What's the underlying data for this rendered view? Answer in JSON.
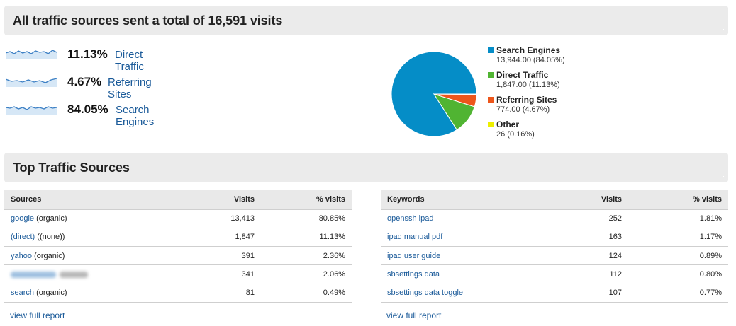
{
  "header_visits": {
    "title": "All traffic sources sent a total of 16,591 visits"
  },
  "summary": [
    {
      "percent": "11.13%",
      "label": "Direct Traffic"
    },
    {
      "percent": "4.67%",
      "label": "Referring Sites"
    },
    {
      "percent": "84.05%",
      "label": "Search Engines"
    }
  ],
  "pie": {
    "slices": [
      {
        "name": "Search Engines",
        "value": "13,944.00 (84.05%)",
        "fraction": 0.8405,
        "color": "#058dc7"
      },
      {
        "name": "Direct Traffic",
        "value": "1,847.00 (11.13%)",
        "fraction": 0.1113,
        "color": "#50b432"
      },
      {
        "name": "Referring Sites",
        "value": "774.00 (4.67%)",
        "fraction": 0.0467,
        "color": "#ed561b"
      },
      {
        "name": "Other",
        "value": "26 (0.16%)",
        "fraction": 0.0016,
        "color": "#edef00"
      }
    ]
  },
  "header_top": {
    "title": "Top Traffic Sources"
  },
  "sources_table": {
    "columns": [
      "Sources",
      "Visits",
      "% visits"
    ],
    "rows": [
      {
        "link": "google",
        "suffix": " (organic)",
        "visits": "13,413",
        "pct": "80.85%"
      },
      {
        "link": "(direct)",
        "suffix": " ((none))",
        "visits": "1,847",
        "pct": "11.13%"
      },
      {
        "link": "yahoo",
        "suffix": " (organic)",
        "visits": "391",
        "pct": "2.36%"
      },
      {
        "link": "",
        "suffix": "",
        "visits": "341",
        "pct": "2.06%"
      },
      {
        "link": "search",
        "suffix": " (organic)",
        "visits": "81",
        "pct": "0.49%"
      }
    ],
    "view_full": "view full report"
  },
  "keywords_table": {
    "columns": [
      "Keywords",
      "Visits",
      "% visits"
    ],
    "rows": [
      {
        "keyword": "openssh ipad",
        "visits": "252",
        "pct": "1.81%"
      },
      {
        "keyword": "ipad manual pdf",
        "visits": "163",
        "pct": "1.17%"
      },
      {
        "keyword": "ipad user guide",
        "visits": "124",
        "pct": "0.89%"
      },
      {
        "keyword": "sbsettings data",
        "visits": "112",
        "pct": "0.80%"
      },
      {
        "keyword": "sbsettings data toggle",
        "visits": "107",
        "pct": "0.77%"
      }
    ],
    "view_full": "view full report"
  },
  "colors": {
    "link": "#1a5a99",
    "header_bg": "#ebebeb",
    "sparkline": "#3b7fc4"
  }
}
